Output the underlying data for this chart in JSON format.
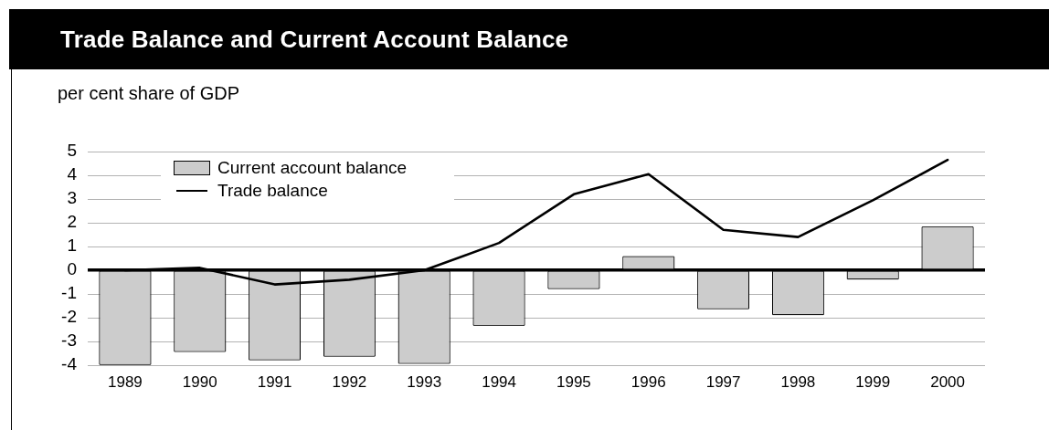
{
  "chart_data": {
    "type": "bar",
    "title": "Trade Balance and Current Account Balance",
    "ylabel": "per cent share of GDP",
    "categories": [
      "1989",
      "1990",
      "1991",
      "1992",
      "1993",
      "1994",
      "1995",
      "1996",
      "1997",
      "1998",
      "1999",
      "2000"
    ],
    "series": [
      {
        "name": "Current account balance",
        "color": "#cccccc",
        "values": [
          -3.95,
          -3.4,
          -3.75,
          -3.6,
          -3.9,
          -2.3,
          -0.75,
          0.55,
          -1.6,
          -1.85,
          -0.35,
          1.8
        ]
      },
      {
        "name": "Trade balance",
        "type": "line",
        "color": "#000000",
        "values": [
          0,
          0.1,
          -0.6,
          -0.4,
          0,
          1.15,
          3.2,
          4.05,
          1.7,
          1.4,
          2.95,
          4.65
        ]
      }
    ],
    "ylim": [
      -4,
      5
    ],
    "yticks": [
      -4,
      -3,
      -2,
      -1,
      0,
      1,
      2,
      3,
      4,
      5
    ],
    "grid": "y",
    "legend": "top left",
    "marker": "none"
  }
}
